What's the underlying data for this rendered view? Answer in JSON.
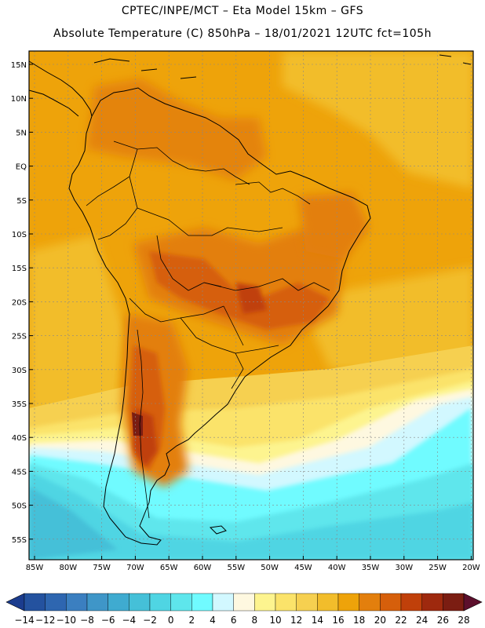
{
  "header": {
    "line1": "CPTEC/INPE/MCT –  Eta Model 15km – GFS",
    "line2": "Absolute Temperature (C) 850hPa – 18/01/2021 12UTC fct=105h"
  },
  "map": {
    "lat_labels": [
      "15N",
      "10N",
      "5N",
      "EQ",
      "5S",
      "10S",
      "15S",
      "20S",
      "25S",
      "30S",
      "35S",
      "40S",
      "45S",
      "50S",
      "55S"
    ],
    "lon_labels": [
      "85W",
      "80W",
      "75W",
      "70W",
      "65W",
      "60W",
      "55W",
      "50W",
      "45W",
      "40W",
      "35W",
      "30W",
      "25W",
      "20W"
    ]
  },
  "colorbar": {
    "labels": [
      "-14",
      "-12",
      "-10",
      "-8",
      "-6",
      "-4",
      "-2",
      "0",
      "2",
      "4",
      "6",
      "8",
      "10",
      "12",
      "14",
      "16",
      "18",
      "20",
      "22",
      "24",
      "26",
      "28"
    ],
    "colors": [
      "#1b3c8e",
      "#24529f",
      "#2e66b0",
      "#3b7fc0",
      "#3f96c8",
      "#3fabd0",
      "#45c0d8",
      "#4fd5e3",
      "#5ee6ec",
      "#70fbff",
      "#d2f8ff",
      "#fef8e0",
      "#fdf48f",
      "#fbe36a",
      "#f6d050",
      "#f2bd2b",
      "#eea30a",
      "#e37f0d",
      "#d65f0b",
      "#c0400a",
      "#9e290e",
      "#7b1d12",
      "#5c0f2c"
    ]
  }
}
